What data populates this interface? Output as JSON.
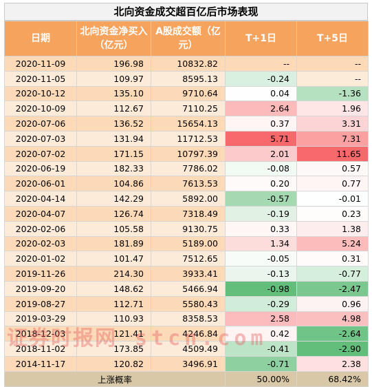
{
  "title": "北向资金成交超百亿后市场表现",
  "headers": [
    "日期",
    "北向资金净买入（亿元）",
    "A股成交额（亿元）",
    "T+1日",
    "T+5日"
  ],
  "rows": [
    {
      "date": "2020-11-09",
      "north": "196.98",
      "turnover": "10832.82",
      "t1": "--",
      "t5": "--"
    },
    {
      "date": "2020-11-05",
      "north": "109.97",
      "turnover": "8595.13",
      "t1": "-0.24",
      "t5": "--"
    },
    {
      "date": "2020-10-12",
      "north": "135.10",
      "turnover": "9710.64",
      "t1": "0.04",
      "t5": "-1.36"
    },
    {
      "date": "2020-10-09",
      "north": "112.67",
      "turnover": "7110.25",
      "t1": "2.64",
      "t5": "1.96"
    },
    {
      "date": "2020-07-06",
      "north": "136.52",
      "turnover": "15654.13",
      "t1": "0.37",
      "t5": "3.31"
    },
    {
      "date": "2020-07-03",
      "north": "131.94",
      "turnover": "11712.53",
      "t1": "5.71",
      "t5": "7.31"
    },
    {
      "date": "2020-07-02",
      "north": "171.15",
      "turnover": "10797.39",
      "t1": "2.01",
      "t5": "11.65"
    },
    {
      "date": "2020-06-19",
      "north": "182.33",
      "turnover": "7786.02",
      "t1": "-0.08",
      "t5": "0.57"
    },
    {
      "date": "2020-06-01",
      "north": "104.86",
      "turnover": "7613.53",
      "t1": "0.20",
      "t5": "0.77"
    },
    {
      "date": "2020-04-14",
      "north": "142.29",
      "turnover": "5892.00",
      "t1": "-0.57",
      "t5": "-0.01"
    },
    {
      "date": "2020-04-07",
      "north": "126.74",
      "turnover": "7318.49",
      "t1": "-0.19",
      "t5": "0.23"
    },
    {
      "date": "2020-02-06",
      "north": "105.58",
      "turnover": "9130.75",
      "t1": "0.33",
      "t5": "1.38"
    },
    {
      "date": "2020-02-03",
      "north": "181.89",
      "turnover": "5189.00",
      "t1": "1.34",
      "t5": "5.24"
    },
    {
      "date": "2020-01-02",
      "north": "101.47",
      "turnover": "7512.65",
      "t1": "-0.05",
      "t5": "0.31"
    },
    {
      "date": "2019-11-26",
      "north": "214.30",
      "turnover": "3933.41",
      "t1": "-0.13",
      "t5": "-0.77"
    },
    {
      "date": "2019-09-20",
      "north": "148.62",
      "turnover": "5466.94",
      "t1": "-0.98",
      "t5": "-2.47"
    },
    {
      "date": "2019-08-27",
      "north": "112.71",
      "turnover": "5580.43",
      "t1": "-0.29",
      "t5": "0.96"
    },
    {
      "date": "2019-03-29",
      "north": "110.93",
      "turnover": "8358.53",
      "t1": "2.58",
      "t5": "4.98"
    },
    {
      "date": "2018-12-03",
      "north": "121.41",
      "turnover": "4246.84",
      "t1": "0.42",
      "t5": "-2.64"
    },
    {
      "date": "2018-11-02",
      "north": "173.85",
      "turnover": "4509.49",
      "t1": "-0.41",
      "t5": "-2.90"
    },
    {
      "date": "2014-11-17",
      "north": "120.82",
      "turnover": "3496.91",
      "t1": "-0.71",
      "t5": "2.38"
    }
  ],
  "footer": {
    "label": "上涨概率",
    "t1": "50.00%",
    "t5": "68.42%"
  },
  "watermark": {
    "cn": "证券时报网",
    "en": "stcn.com"
  },
  "colors": {
    "header_bg": "#f6a35d",
    "row_odd": "#fcd9b7",
    "row_even": "#fdebda",
    "footer_bg": "#d9c8a8",
    "positive": "#f8696b",
    "negative": "#63be7b"
  }
}
